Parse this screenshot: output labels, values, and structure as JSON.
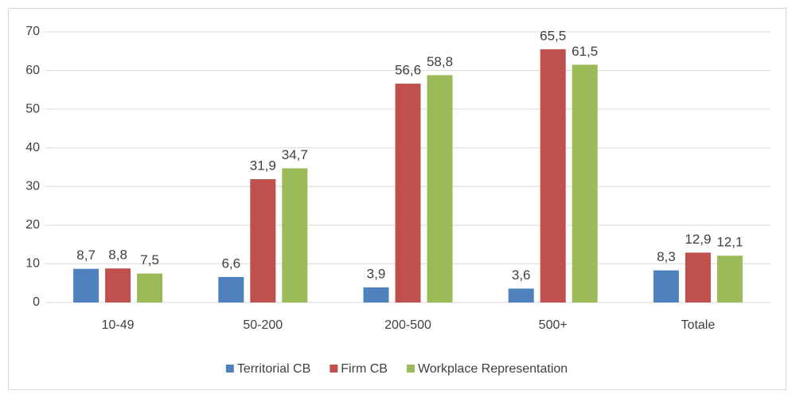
{
  "chart_data": {
    "type": "bar",
    "categories": [
      "10-49",
      "50-200",
      "200-500",
      "500+",
      "Totale"
    ],
    "series": [
      {
        "name": "Territorial CB",
        "color": "#4f81bd",
        "values": [
          8.7,
          6.6,
          3.9,
          3.6,
          8.3
        ],
        "value_labels": [
          "8,7",
          "6,6",
          "3,9",
          "3,6",
          "8,3"
        ]
      },
      {
        "name": "Firm CB",
        "color": "#c0504d",
        "values": [
          8.8,
          31.9,
          56.6,
          65.5,
          12.9
        ],
        "value_labels": [
          "8,8",
          "31,9",
          "56,6",
          "65,5",
          "12,9"
        ]
      },
      {
        "name": "Workplace Representation",
        "color": "#9bbb59",
        "values": [
          7.5,
          34.7,
          58.8,
          61.5,
          12.1
        ],
        "value_labels": [
          "7,5",
          "34,7",
          "58,8",
          "61,5",
          "12,1"
        ]
      }
    ],
    "ylim": [
      0,
      70
    ],
    "yticks": [
      0,
      10,
      20,
      30,
      40,
      50,
      60,
      70
    ],
    "grid": true,
    "legend": "bottom"
  }
}
